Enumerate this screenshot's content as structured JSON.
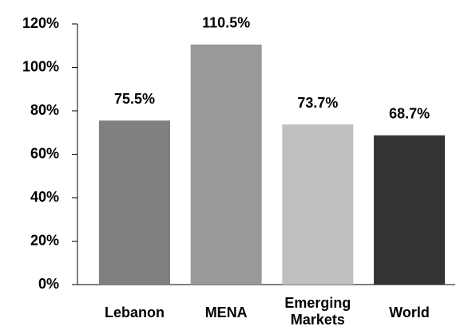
{
  "chart_data": {
    "type": "bar",
    "categories": [
      "Lebanon",
      "MENA",
      "Emerging Markets",
      "World"
    ],
    "values": [
      75.5,
      110.5,
      73.7,
      68.7
    ],
    "value_labels": [
      "75.5%",
      "110.5%",
      "73.7%",
      "68.7%"
    ],
    "colors": [
      "#808080",
      "#999999",
      "#c0c0c0",
      "#333333"
    ],
    "ylim": [
      0,
      120
    ],
    "yticks": [
      {
        "value": 0,
        "label": "0%"
      },
      {
        "value": 20,
        "label": "20%"
      },
      {
        "value": 40,
        "label": "40%"
      },
      {
        "value": 60,
        "label": "60%"
      },
      {
        "value": 80,
        "label": "80%"
      },
      {
        "value": 100,
        "label": "100%"
      },
      {
        "value": 120,
        "label": "120%"
      }
    ],
    "grid": false
  }
}
